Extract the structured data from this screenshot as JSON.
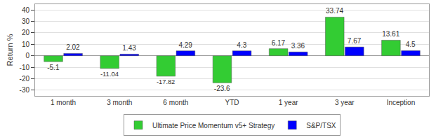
{
  "chart_data": {
    "type": "bar",
    "y_label": "Return %",
    "categories": [
      "1 month",
      "3 month",
      "6 month",
      "YTD",
      "1 year",
      "3 year",
      "Inception"
    ],
    "series": [
      {
        "name": "Ultimate Price Momentum v5+ Strategy",
        "color": "#33cc33",
        "values": [
          -5.1,
          -11.04,
          -17.82,
          -23.6,
          6.17,
          33.74,
          13.61
        ]
      },
      {
        "name": "S&P/TSX",
        "color": "#0000ff",
        "values": [
          2.02,
          1.43,
          4.29,
          4.3,
          3.36,
          7.67,
          4.5
        ]
      }
    ],
    "ylim": [
      -35,
      45
    ],
    "yticks": [
      -30,
      -20,
      -10,
      0,
      10,
      20,
      30,
      40
    ],
    "grid": true,
    "legend": "bottom",
    "data_labels": true
  }
}
